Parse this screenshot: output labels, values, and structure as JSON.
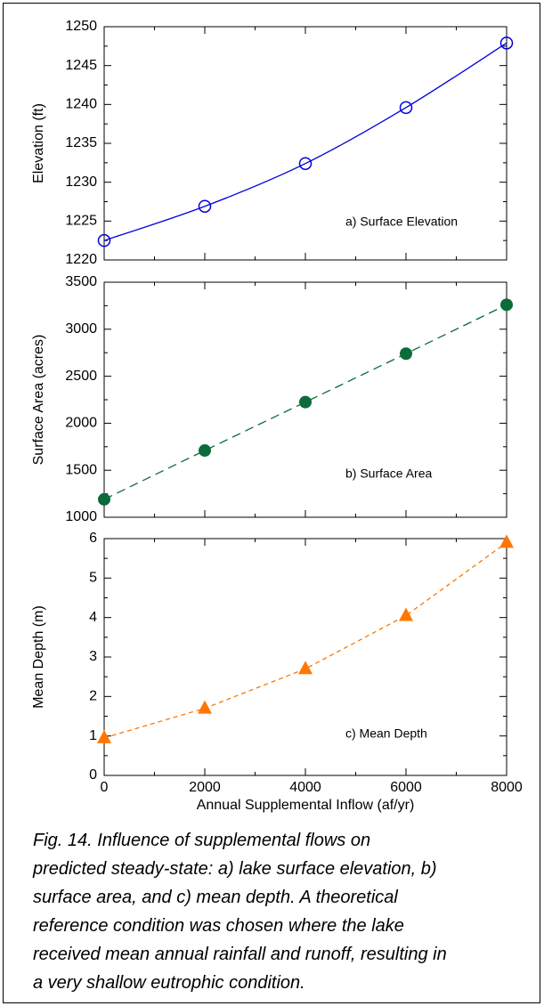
{
  "chart_data": [
    {
      "type": "line",
      "ylabel": "Elevation (ft)",
      "annotation": "a) Surface Elevation",
      "x": [
        0,
        2000,
        4000,
        6000,
        8000
      ],
      "values": [
        1222.5,
        1226.9,
        1232.4,
        1239.6,
        1247.9
      ],
      "color": "#0000dd",
      "marker": "open-circle",
      "line_style": "solid",
      "xlim": [
        0,
        8000
      ],
      "xticks": [
        0,
        2000,
        4000,
        6000,
        8000
      ],
      "ylim": [
        1220,
        1250
      ],
      "yticks": [
        1220,
        1225,
        1230,
        1235,
        1240,
        1245,
        1250
      ]
    },
    {
      "type": "line",
      "ylabel": "Surface Area (acres)",
      "annotation": "b) Surface Area",
      "x": [
        0,
        2000,
        4000,
        6000,
        8000
      ],
      "values": [
        1190,
        1710,
        2225,
        2740,
        3260
      ],
      "color": "#0b6b3a",
      "marker": "filled-circle",
      "line_style": "dashed",
      "xlim": [
        0,
        8000
      ],
      "xticks": [
        0,
        2000,
        4000,
        6000,
        8000
      ],
      "ylim": [
        1000,
        3500
      ],
      "yticks": [
        1000,
        1500,
        2000,
        2500,
        3000,
        3500
      ]
    },
    {
      "type": "line",
      "ylabel": "Mean Depth (m)",
      "annotation": "c) Mean Depth",
      "xlabel": "Annual Supplemental Inflow (af/yr)",
      "x": [
        0,
        2000,
        4000,
        6000,
        8000
      ],
      "values": [
        0.95,
        1.7,
        2.7,
        4.05,
        5.9
      ],
      "color": "#ff7700",
      "marker": "triangle",
      "line_style": "short-dashed",
      "xlim": [
        0,
        8000
      ],
      "xticks": [
        0,
        2000,
        4000,
        6000,
        8000
      ],
      "xtick_labels": true,
      "ylim": [
        0,
        6
      ],
      "yticks": [
        0,
        1,
        2,
        3,
        4,
        5,
        6
      ]
    }
  ],
  "caption": [
    "Fig. 14. Influence of supplemental flows on",
    "predicted steady-state: a) lake surface elevation, b)",
    "surface area, and c) mean depth. A theoretical",
    "reference condition was chosen where the lake",
    "received mean annual rainfall and runoff, resulting in",
    "a very shallow eutrophic condition."
  ]
}
